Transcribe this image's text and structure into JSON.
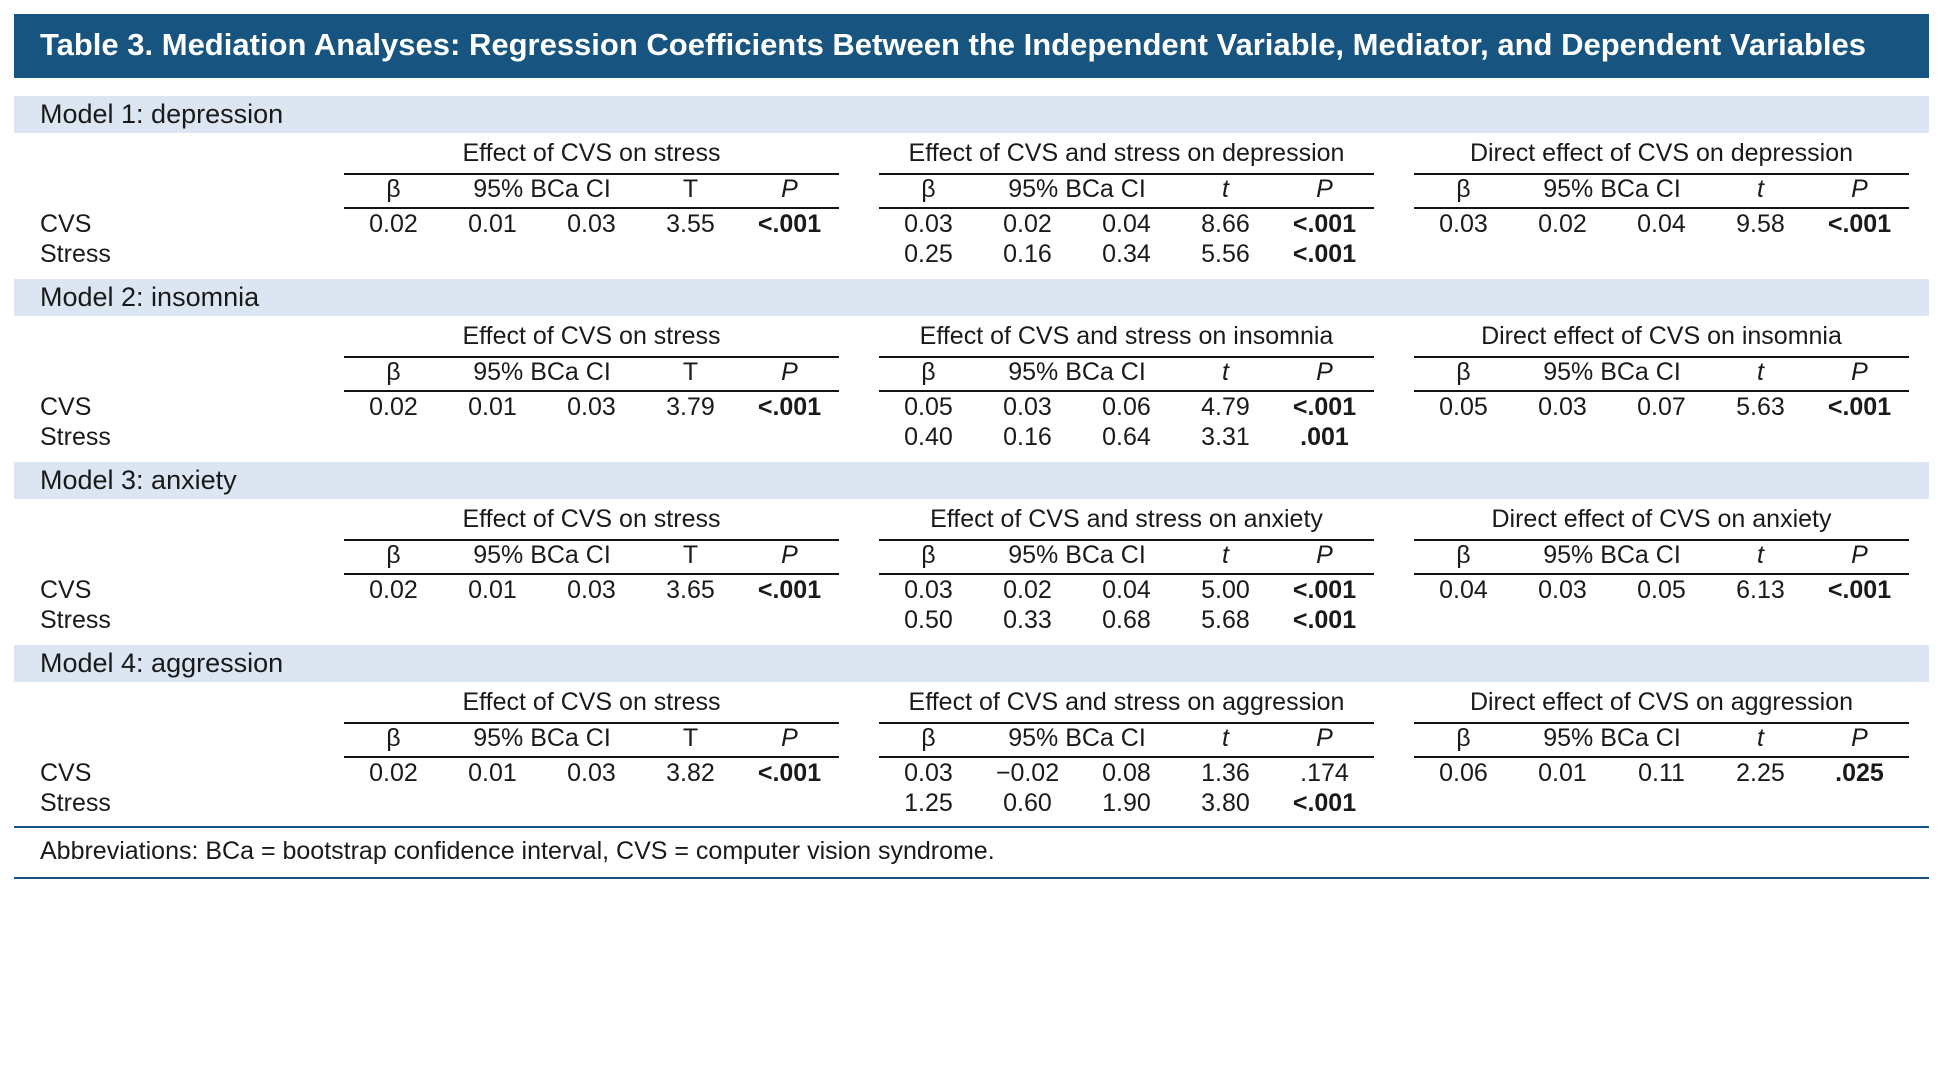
{
  "title": "Table 3. Mediation Analyses: Regression Coefficients Between the Independent Variable, Mediator, and Dependent Variables",
  "footnote": "Abbreviations: BCa = bootstrap confidence interval, CVS = computer vision syndrome.",
  "colors": {
    "banner_bg": "#17547F",
    "band_bg": "#DCE6F3",
    "rule_blue": "#17547F",
    "text": "#1A1A1A"
  },
  "headers": {
    "beta": "β",
    "ci": "95% BCa CI",
    "t_group1": "T",
    "t": "t",
    "p": "P"
  },
  "row_labels": {
    "cvs": "CVS",
    "stress": "Stress"
  },
  "models": [
    {
      "label": "Model 1: depression",
      "group_titles": [
        "Effect of CVS on stress",
        "Effect of CVS and stress on depression",
        "Direct effect of CVS on depression"
      ],
      "cvs_g1": [
        "0.02",
        "0.01",
        "0.03",
        "3.55",
        "<.001"
      ],
      "cvs_g2": [
        "0.03",
        "0.02",
        "0.04",
        "8.66",
        "<.001"
      ],
      "cvs_g3": [
        "0.03",
        "0.02",
        "0.04",
        "9.58",
        "<.001"
      ],
      "stress_g2": [
        "0.25",
        "0.16",
        "0.34",
        "5.56",
        "<.001"
      ]
    },
    {
      "label": "Model 2: insomnia",
      "group_titles": [
        "Effect of CVS on stress",
        "Effect of CVS and stress on insomnia",
        "Direct effect of CVS on insomnia"
      ],
      "cvs_g1": [
        "0.02",
        "0.01",
        "0.03",
        "3.79",
        "<.001"
      ],
      "cvs_g2": [
        "0.05",
        "0.03",
        "0.06",
        "4.79",
        "<.001"
      ],
      "cvs_g3": [
        "0.05",
        "0.03",
        "0.07",
        "5.63",
        "<.001"
      ],
      "stress_g2": [
        "0.40",
        "0.16",
        "0.64",
        "3.31",
        ".001"
      ]
    },
    {
      "label": "Model 3: anxiety",
      "group_titles": [
        "Effect of CVS on stress",
        "Effect of CVS and stress on anxiety",
        "Direct effect of CVS on anxiety"
      ],
      "cvs_g1": [
        "0.02",
        "0.01",
        "0.03",
        "3.65",
        "<.001"
      ],
      "cvs_g2": [
        "0.03",
        "0.02",
        "0.04",
        "5.00",
        "<.001"
      ],
      "cvs_g3": [
        "0.04",
        "0.03",
        "0.05",
        "6.13",
        "<.001"
      ],
      "stress_g2": [
        "0.50",
        "0.33",
        "0.68",
        "5.68",
        "<.001"
      ]
    },
    {
      "label": "Model 4: aggression",
      "group_titles": [
        "Effect of CVS on stress",
        "Effect of CVS and stress on aggression",
        "Direct effect of CVS on aggression"
      ],
      "cvs_g1": [
        "0.02",
        "0.01",
        "0.03",
        "3.82",
        "<.001"
      ],
      "cvs_g2": [
        "0.03",
        "−0.02",
        "0.08",
        "1.36",
        ".174"
      ],
      "cvs_g3": [
        "0.06",
        "0.01",
        "0.11",
        "2.25",
        ".025"
      ],
      "stress_g2": [
        "1.25",
        "0.60",
        "1.90",
        "3.80",
        "<.001"
      ]
    }
  ]
}
